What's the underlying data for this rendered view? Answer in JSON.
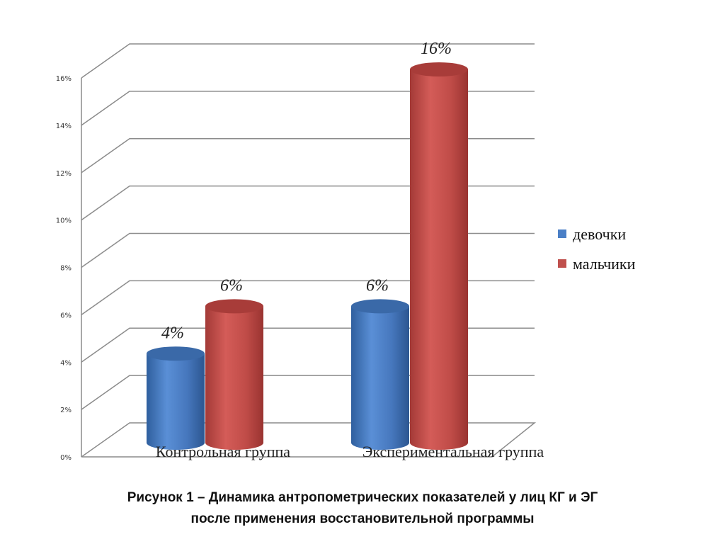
{
  "chart_data": {
    "type": "bar",
    "style": "3d-cylinder",
    "categories": [
      "Контрольная группа",
      "Экспериментальная группа"
    ],
    "series": [
      {
        "name": "девочки",
        "values": [
          4,
          6
        ],
        "labels": [
          "4%",
          "6%"
        ],
        "color": "#4a7fc6"
      },
      {
        "name": "мальчики",
        "values": [
          6,
          16
        ],
        "labels": [
          "6%",
          "16%"
        ],
        "color": "#c0504d"
      }
    ],
    "ylim": [
      0,
      16
    ],
    "y_ticks": [
      "0%",
      "2%",
      "4%",
      "6%",
      "8%",
      "10%",
      "12%",
      "14%",
      "16%"
    ],
    "grid": true,
    "legend_position": "right"
  },
  "caption": {
    "line1": "Рисунок 1 – Динамика антропометрических показателей у лиц КГ и ЭГ",
    "line2": "после применения восстановительной программы"
  }
}
